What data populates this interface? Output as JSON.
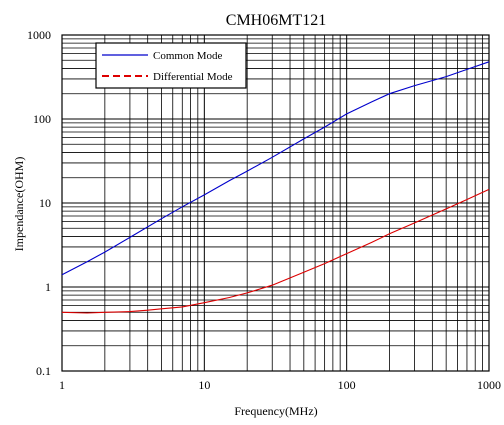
{
  "chart_data": {
    "type": "line",
    "title": "CMH06MT121",
    "xlabel": "Frequency(MHz)",
    "ylabel": "Impendance(OHM)",
    "xscale": "log",
    "yscale": "log",
    "xlim": [
      1,
      1000
    ],
    "ylim": [
      0.1,
      1000
    ],
    "grid": true,
    "legend_position": "top-left",
    "x_ticks": [
      {
        "value": 1,
        "label": "1"
      },
      {
        "value": 10,
        "label": "10"
      },
      {
        "value": 100,
        "label": "100"
      },
      {
        "value": 1000,
        "label": "1000"
      }
    ],
    "y_ticks": [
      {
        "value": 0.1,
        "label": "0.1"
      },
      {
        "value": 1,
        "label": "1"
      },
      {
        "value": 10,
        "label": "10"
      },
      {
        "value": 100,
        "label": "100"
      },
      {
        "value": 1000,
        "label": "1000"
      }
    ],
    "series": [
      {
        "name": "Common Mode",
        "color": "#0000cc",
        "line_style": "solid",
        "x": [
          1,
          1.5,
          2,
          3,
          5,
          7,
          10,
          15,
          20,
          30,
          50,
          70,
          100,
          150,
          200,
          300,
          500,
          700,
          1000
        ],
        "y": [
          1.4,
          2.0,
          2.6,
          3.9,
          6.5,
          9.0,
          12.5,
          18.5,
          24,
          35,
          58,
          80,
          115,
          160,
          200,
          250,
          320,
          390,
          480
        ]
      },
      {
        "name": "Differential Mode",
        "color": "#dd0000",
        "line_style": "dashed",
        "x": [
          1,
          1.5,
          2,
          3,
          4,
          5,
          7,
          10,
          15,
          20,
          30,
          50,
          70,
          100,
          150,
          200,
          300,
          500,
          700,
          1000
        ],
        "y": [
          0.5,
          0.49,
          0.5,
          0.51,
          0.53,
          0.55,
          0.58,
          0.65,
          0.75,
          0.85,
          1.05,
          1.5,
          1.9,
          2.5,
          3.4,
          4.3,
          5.8,
          8.5,
          11,
          14.5
        ]
      }
    ]
  }
}
